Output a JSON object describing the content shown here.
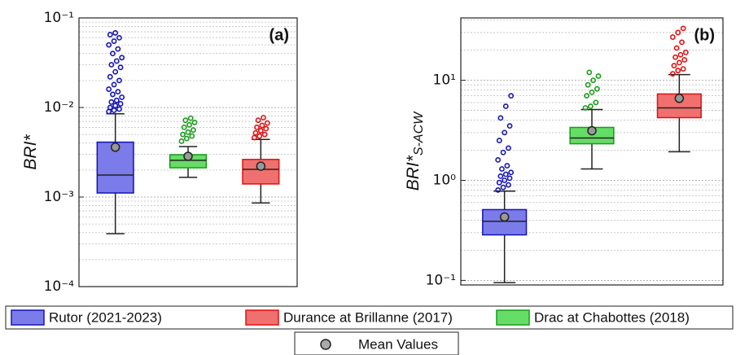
{
  "chart_data": [
    {
      "type": "box",
      "ylabel": "BRI*",
      "annotation": "(a)",
      "log_scale": true,
      "grid": true,
      "ylim": [
        0.0001,
        0.1
      ],
      "yticks": [
        {
          "value": 0.0001,
          "label": "10⁻⁴"
        },
        {
          "value": 0.001,
          "label": "10⁻³"
        },
        {
          "value": 0.01,
          "label": "10⁻²"
        },
        {
          "value": 0.1,
          "label": "10⁻¹"
        }
      ],
      "mean_label": "Mean Values",
      "series": [
        {
          "name": "Rutor (2021-2023)",
          "color": "#7b7bea",
          "edge": "#1414b4",
          "q1": 0.00111,
          "median": 0.00176,
          "q3": 0.0041,
          "whisker_low": 0.00039,
          "whisker_high": 0.0085,
          "mean": 0.0036,
          "outliers": [
            0.009,
            0.0093,
            0.0096,
            0.01,
            0.0105,
            0.011,
            0.0115,
            0.012,
            0.013,
            0.014,
            0.015,
            0.016,
            0.018,
            0.02,
            0.022,
            0.025,
            0.028,
            0.03,
            0.033,
            0.036,
            0.04,
            0.045,
            0.05,
            0.055,
            0.06,
            0.065,
            0.068
          ]
        },
        {
          "name": "Drac at Chabottes (2018)",
          "color": "#66dd66",
          "edge": "#1a9a1a",
          "q1": 0.00212,
          "median": 0.00257,
          "q3": 0.00297,
          "whisker_low": 0.00166,
          "whisker_high": 0.00366,
          "mean": 0.00285,
          "outliers": [
            0.0042,
            0.0045,
            0.0048,
            0.005,
            0.0053,
            0.0056,
            0.006,
            0.0064,
            0.0068,
            0.0072,
            0.0076
          ]
        },
        {
          "name": "Durance at Brillanne (2017)",
          "color": "#f07070",
          "edge": "#e01010",
          "q1": 0.0014,
          "median": 0.00204,
          "q3": 0.00263,
          "whisker_low": 0.00086,
          "whisker_high": 0.0044,
          "mean": 0.00221,
          "outliers": [
            0.0046,
            0.0048,
            0.005,
            0.0052,
            0.0055,
            0.0058,
            0.006,
            0.0063,
            0.0067,
            0.0072,
            0.0077
          ]
        }
      ]
    },
    {
      "type": "box",
      "ylabel": "BRI*",
      "ylabel_sub": "S-ACW",
      "annotation": "(b)",
      "log_scale": true,
      "grid": true,
      "ylim": [
        0.09,
        42
      ],
      "yticks": [
        {
          "value": 0.1,
          "label": "10⁻¹"
        },
        {
          "value": 1,
          "label": "10⁰"
        },
        {
          "value": 10,
          "label": "10¹"
        }
      ],
      "series": [
        {
          "name": "Rutor (2021-2023)",
          "color": "#7b7bea",
          "edge": "#1414b4",
          "q1": 0.285,
          "median": 0.39,
          "q3": 0.51,
          "whisker_low": 0.095,
          "whisker_high": 0.78,
          "mean": 0.43,
          "outliers": [
            0.8,
            0.85,
            0.9,
            0.95,
            1.0,
            1.05,
            1.1,
            1.15,
            1.2,
            1.3,
            1.4,
            1.6,
            1.9,
            2.1,
            2.5,
            3.0,
            3.5,
            4.2,
            5.5,
            7.0
          ]
        },
        {
          "name": "Drac at Chabottes (2018)",
          "color": "#66dd66",
          "edge": "#1a9a1a",
          "q1": 2.32,
          "median": 2.65,
          "q3": 3.38,
          "whisker_low": 1.3,
          "whisker_high": 5.1,
          "mean": 3.13,
          "outliers": [
            5.3,
            5.5,
            6.0,
            7.0,
            7.6,
            8.2,
            9.0,
            10.0,
            11.0,
            12.0
          ]
        },
        {
          "name": "Durance at Brillanne (2017)",
          "color": "#f07070",
          "edge": "#e01010",
          "q1": 4.23,
          "median": 5.3,
          "q3": 7.3,
          "whisker_low": 1.93,
          "whisker_high": 11.4,
          "mean": 6.6,
          "outliers": [
            11.6,
            12.5,
            13,
            14,
            15,
            16,
            17,
            18,
            19,
            21,
            24,
            27,
            30,
            33
          ]
        }
      ]
    }
  ]
}
